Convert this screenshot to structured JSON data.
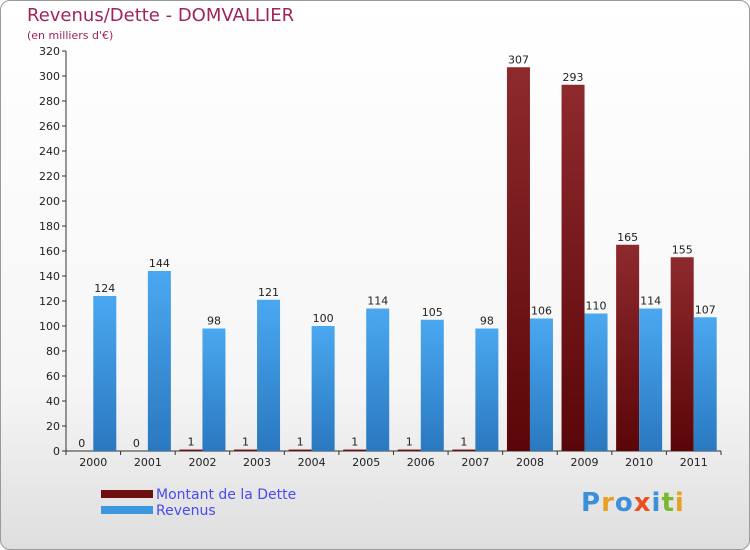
{
  "title": "Revenus/Dette - DOMVALLIER",
  "subtitle": "(en milliers d'€)",
  "logo": "Proxiti",
  "colors": {
    "title": "#a0245a",
    "dette": "#7a1a1e",
    "revenus": "#3c96e0",
    "legend_text": "#4a4af0"
  },
  "legend": [
    {
      "label": "Montant de la Dette",
      "color": "#6e0f12"
    },
    {
      "label": "Revenus",
      "color": "#3c96e0"
    }
  ],
  "chart_data": {
    "type": "bar",
    "title": "Revenus/Dette - DOMVALLIER",
    "subtitle": "(en milliers d'€)",
    "categories": [
      "2000",
      "2001",
      "2002",
      "2003",
      "2004",
      "2005",
      "2006",
      "2007",
      "2008",
      "2009",
      "2010",
      "2011"
    ],
    "series": [
      {
        "name": "Montant de la Dette",
        "values": [
          0,
          0,
          1,
          1,
          1,
          1,
          1,
          1,
          307,
          293,
          165,
          155
        ]
      },
      {
        "name": "Revenus",
        "values": [
          124,
          144,
          98,
          121,
          100,
          114,
          105,
          98,
          106,
          110,
          114,
          107
        ]
      }
    ],
    "ylim": [
      0,
      320
    ],
    "yticks": [
      0,
      20,
      40,
      60,
      80,
      100,
      120,
      140,
      160,
      180,
      200,
      220,
      240,
      260,
      280,
      300,
      320
    ],
    "grid": false,
    "legend_position": "bottom-left"
  }
}
